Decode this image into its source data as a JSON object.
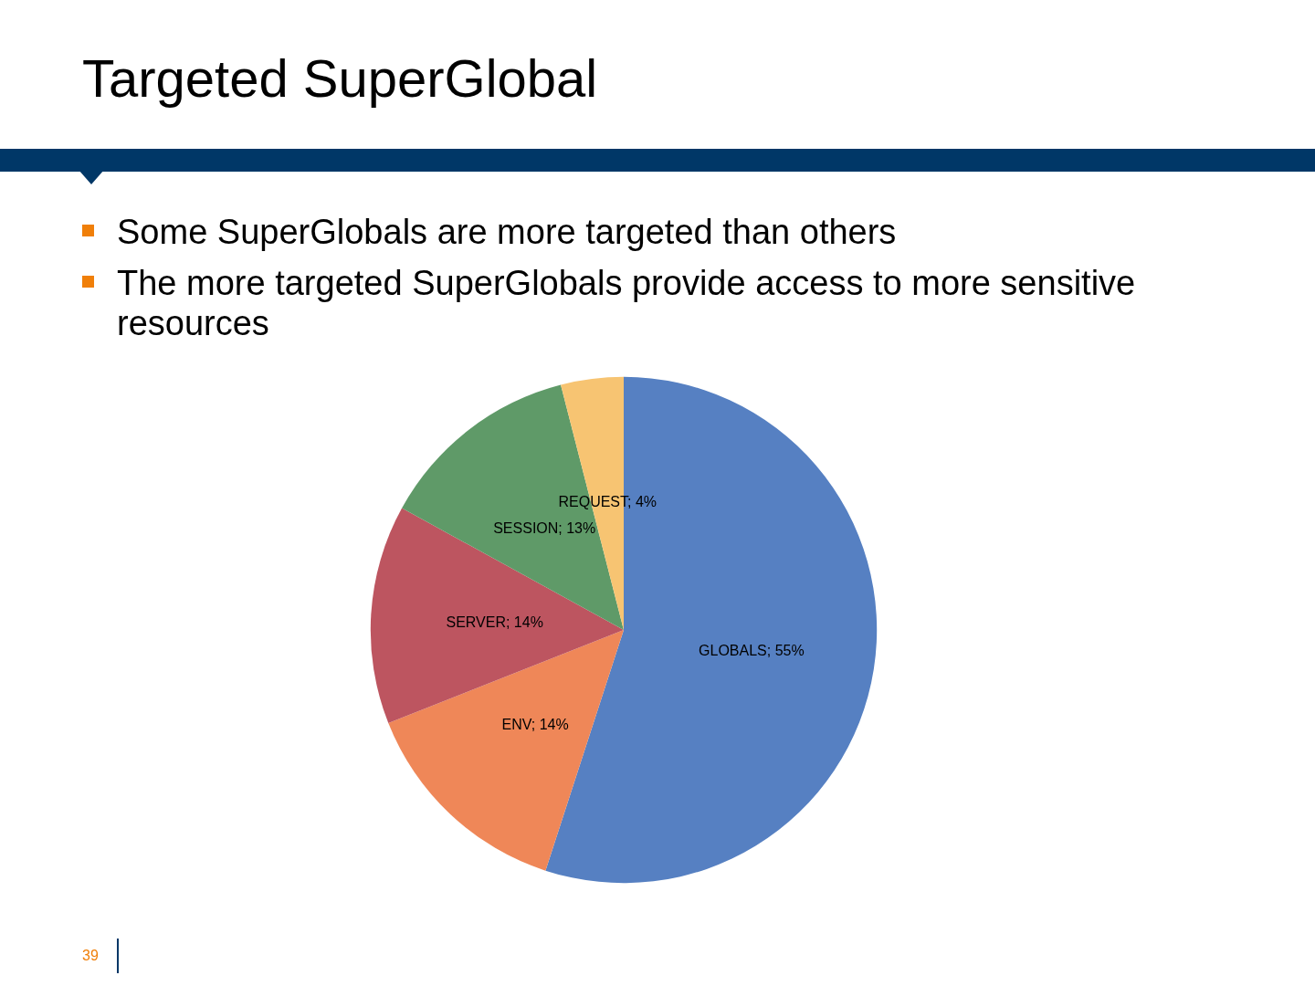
{
  "chart_data": {
    "type": "pie",
    "title": "Targeted SuperGlobal",
    "annotations": [
      "Some SuperGlobals are more targeted than others",
      "The more targeted SuperGlobals  provide access to more sensitive resources",
      "39"
    ],
    "categories": [
      "GLOBALS",
      "ENV",
      "SERVER",
      "SESSION",
      "REQUEST"
    ],
    "values": [
      55,
      14,
      14,
      13,
      4
    ],
    "value_labels": [
      "55%",
      "14%",
      "14%",
      "13%",
      "4%"
    ],
    "colors": [
      "#5680c2",
      "#ef8758",
      "#bd5560",
      "#5f9a68",
      "#f7c472"
    ],
    "legend": false
  }
}
